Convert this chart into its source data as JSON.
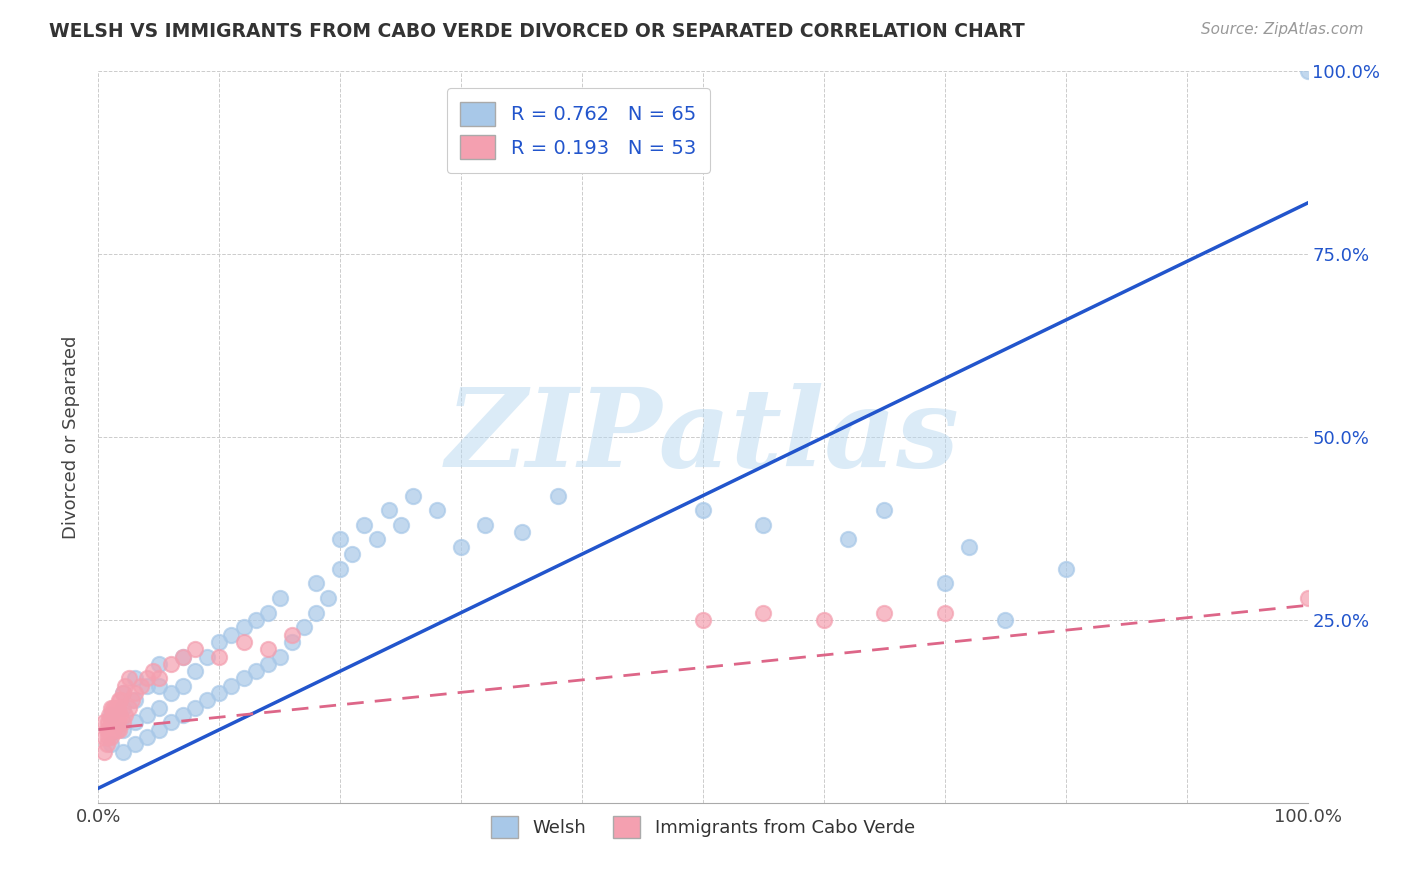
{
  "title": "WELSH VS IMMIGRANTS FROM CABO VERDE DIVORCED OR SEPARATED CORRELATION CHART",
  "source_text": "Source: ZipAtlas.com",
  "ylabel": "Divorced or Separated",
  "watermark": "ZIPatlas",
  "blue_R": 0.762,
  "blue_N": 65,
  "pink_R": 0.193,
  "pink_N": 53,
  "blue_scatter_color": "#a8c8e8",
  "pink_scatter_color": "#f4a0b0",
  "blue_line_color": "#2255cc",
  "pink_line_color": "#dd6688",
  "legend_blue_label": "Welsh",
  "legend_pink_label": "Immigrants from Cabo Verde",
  "xlim": [
    0.0,
    1.0
  ],
  "ylim": [
    0.0,
    1.0
  ],
  "x_ticks": [
    0.0,
    0.1,
    0.2,
    0.3,
    0.4,
    0.5,
    0.6,
    0.7,
    0.8,
    0.9,
    1.0
  ],
  "y_ticks": [
    0.0,
    0.25,
    0.5,
    0.75,
    1.0
  ],
  "blue_line_x0": 0.0,
  "blue_line_y0": 0.02,
  "blue_line_x1": 1.0,
  "blue_line_y1": 0.82,
  "pink_line_x0": 0.0,
  "pink_line_y0": 0.1,
  "pink_line_x1": 1.0,
  "pink_line_y1": 0.27,
  "blue_x": [
    0.01,
    0.01,
    0.02,
    0.02,
    0.02,
    0.02,
    0.03,
    0.03,
    0.03,
    0.03,
    0.04,
    0.04,
    0.04,
    0.05,
    0.05,
    0.05,
    0.05,
    0.06,
    0.06,
    0.07,
    0.07,
    0.07,
    0.08,
    0.08,
    0.09,
    0.09,
    0.1,
    0.1,
    0.11,
    0.11,
    0.12,
    0.12,
    0.13,
    0.13,
    0.14,
    0.14,
    0.15,
    0.15,
    0.16,
    0.17,
    0.18,
    0.18,
    0.19,
    0.2,
    0.2,
    0.21,
    0.22,
    0.23,
    0.24,
    0.25,
    0.26,
    0.28,
    0.3,
    0.32,
    0.35,
    0.38,
    0.5,
    0.55,
    0.62,
    0.65,
    0.7,
    0.72,
    0.75,
    0.8,
    1.0
  ],
  "blue_y": [
    0.08,
    0.12,
    0.07,
    0.1,
    0.13,
    0.15,
    0.08,
    0.11,
    0.14,
    0.17,
    0.09,
    0.12,
    0.16,
    0.1,
    0.13,
    0.16,
    0.19,
    0.11,
    0.15,
    0.12,
    0.16,
    0.2,
    0.13,
    0.18,
    0.14,
    0.2,
    0.15,
    0.22,
    0.16,
    0.23,
    0.17,
    0.24,
    0.18,
    0.25,
    0.19,
    0.26,
    0.2,
    0.28,
    0.22,
    0.24,
    0.26,
    0.3,
    0.28,
    0.32,
    0.36,
    0.34,
    0.38,
    0.36,
    0.4,
    0.38,
    0.42,
    0.4,
    0.35,
    0.38,
    0.37,
    0.42,
    0.4,
    0.38,
    0.36,
    0.4,
    0.3,
    0.35,
    0.25,
    0.32,
    1.0
  ],
  "pink_x": [
    0.005,
    0.005,
    0.005,
    0.007,
    0.007,
    0.008,
    0.008,
    0.009,
    0.009,
    0.01,
    0.01,
    0.01,
    0.011,
    0.011,
    0.012,
    0.012,
    0.013,
    0.013,
    0.014,
    0.014,
    0.015,
    0.015,
    0.016,
    0.016,
    0.017,
    0.017,
    0.018,
    0.018,
    0.02,
    0.02,
    0.022,
    0.022,
    0.025,
    0.025,
    0.028,
    0.03,
    0.035,
    0.04,
    0.045,
    0.05,
    0.06,
    0.07,
    0.08,
    0.1,
    0.12,
    0.14,
    0.16,
    0.5,
    0.55,
    0.6,
    0.65,
    0.7,
    1.0
  ],
  "pink_y": [
    0.07,
    0.09,
    0.11,
    0.08,
    0.1,
    0.09,
    0.11,
    0.1,
    0.12,
    0.09,
    0.11,
    0.13,
    0.1,
    0.12,
    0.11,
    0.13,
    0.1,
    0.12,
    0.11,
    0.13,
    0.1,
    0.12,
    0.11,
    0.13,
    0.1,
    0.14,
    0.12,
    0.14,
    0.11,
    0.15,
    0.12,
    0.16,
    0.13,
    0.17,
    0.14,
    0.15,
    0.16,
    0.17,
    0.18,
    0.17,
    0.19,
    0.2,
    0.21,
    0.2,
    0.22,
    0.21,
    0.23,
    0.25,
    0.26,
    0.25,
    0.26,
    0.26,
    0.28
  ]
}
